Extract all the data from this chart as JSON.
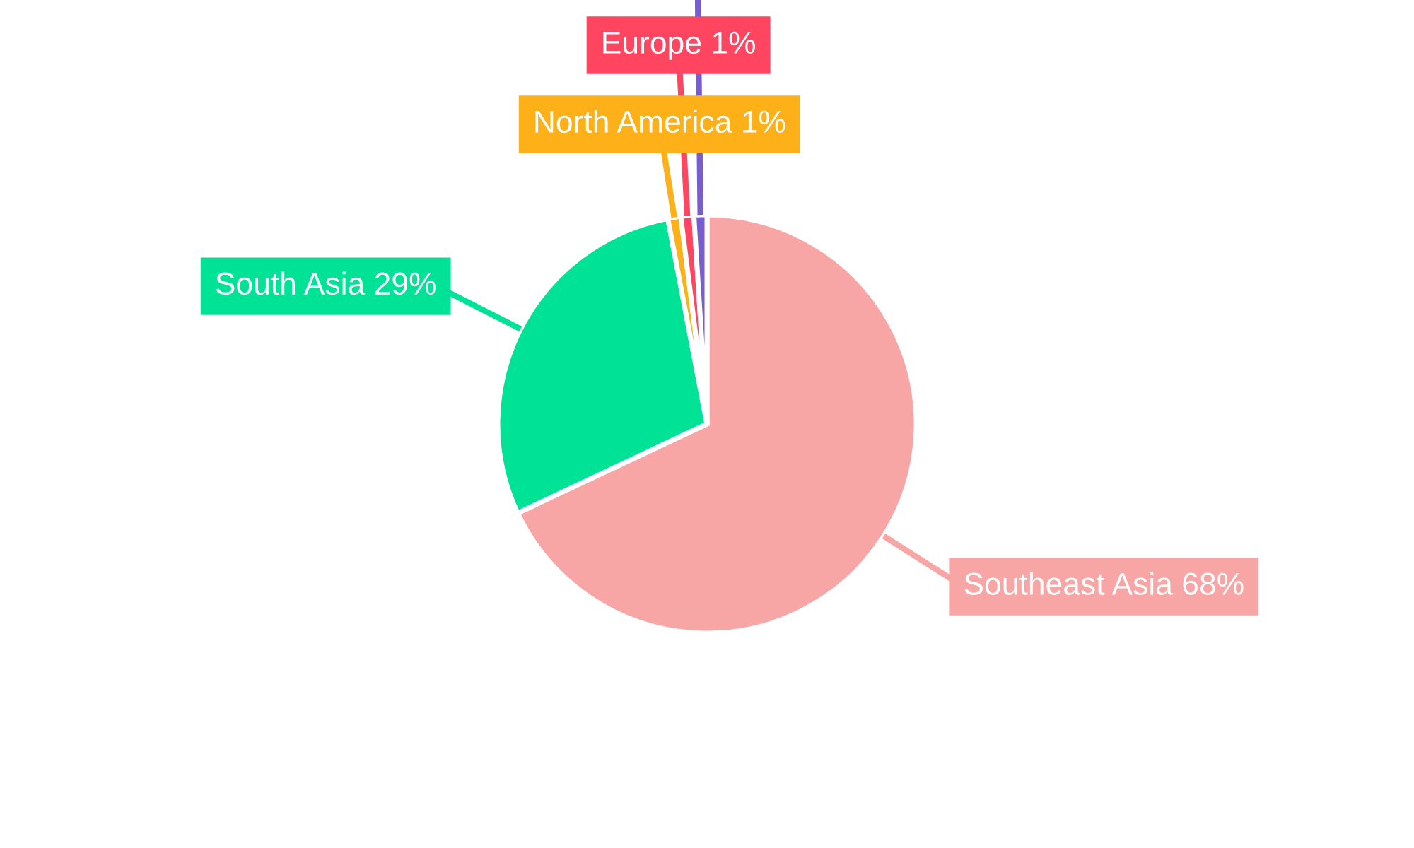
{
  "chart_data": {
    "type": "pie",
    "categories": [
      "Southeast Asia",
      "South Asia",
      "North America",
      "Europe",
      null
    ],
    "values": [
      68,
      29,
      1,
      1,
      1
    ],
    "value_labels": [
      "68%",
      "29%",
      "1%",
      "1%",
      null
    ],
    "colors": [
      "#f8a5a5",
      "#00e396",
      "#feb019",
      "#ff4560",
      "#775dd0"
    ],
    "legend": false
  }
}
